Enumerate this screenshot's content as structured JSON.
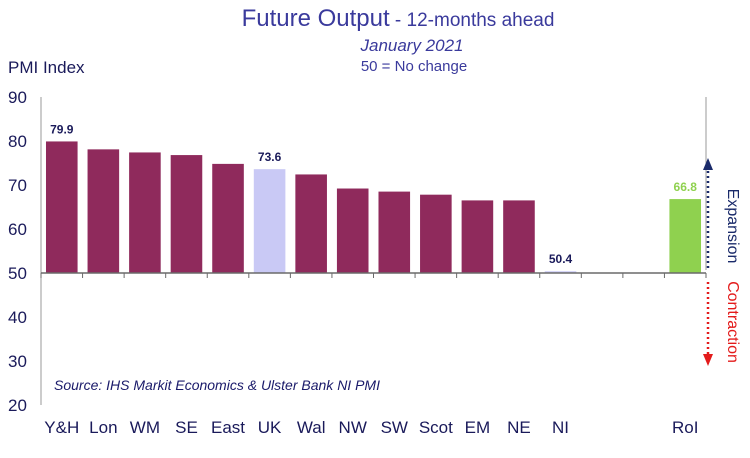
{
  "header": {
    "title": "Future Output",
    "title_suffix": " - 12-months ahead",
    "subtitle": "January 2021",
    "note": "50 = No change"
  },
  "source": "Source: IHS Markit Economics & Ulster Bank NI PMI",
  "side_labels": {
    "expansion": "Expansion",
    "contraction": "Contraction"
  },
  "colors": {
    "default_bar": "#8f2a5c",
    "uk_bar": "#c9c9f5",
    "roi_bar": "#8fd14f",
    "text": "#1a1a5a",
    "title": "#3a3a9c",
    "roi_label": "#8fd14f",
    "expansion_arrow": "#1a2a6a",
    "contraction_arrow": "#e31b1b"
  },
  "chart_data": {
    "type": "bar",
    "ylabel": "PMI Index",
    "ylim": [
      20,
      90
    ],
    "yticks": [
      20,
      30,
      40,
      50,
      60,
      70,
      80,
      90
    ],
    "baseline": 50,
    "grid": false,
    "categories": [
      "Y&H",
      "Lon",
      "WM",
      "SE",
      "East",
      "UK",
      "Wal",
      "NW",
      "SW",
      "Scot",
      "EM",
      "NE",
      "NI",
      "",
      "",
      "RoI"
    ],
    "values": [
      79.9,
      78.1,
      77.4,
      76.8,
      74.8,
      73.6,
      72.4,
      69.2,
      68.5,
      67.8,
      66.5,
      66.5,
      50.4,
      null,
      null,
      66.8
    ],
    "data_labels": {
      "0": "79.9",
      "5": "73.6",
      "12": "50.4",
      "15": "66.8"
    }
  }
}
